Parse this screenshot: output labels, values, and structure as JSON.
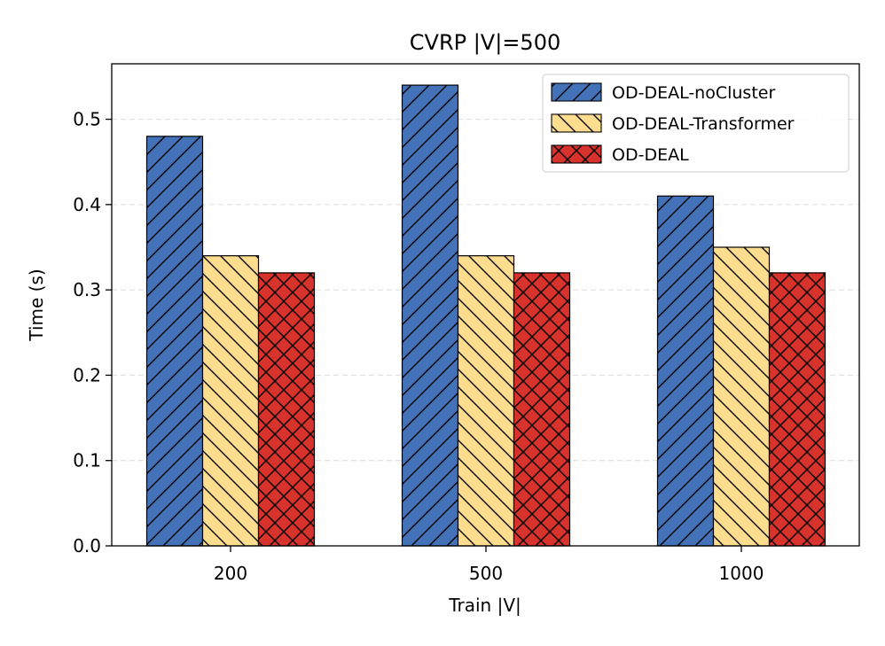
{
  "chart_data": {
    "type": "bar",
    "title": "CVRP |V|=500",
    "xlabel": "Train |V|",
    "ylabel": "Time (s)",
    "categories": [
      "200",
      "500",
      "1000"
    ],
    "ylim": [
      0,
      0.565
    ],
    "yticks": [
      0.0,
      0.1,
      0.2,
      0.3,
      0.4,
      0.5
    ],
    "ytick_labels": [
      "0.0",
      "0.1",
      "0.2",
      "0.3",
      "0.4",
      "0.5"
    ],
    "grid": "y-dashed",
    "legend_position": "top-right",
    "series": [
      {
        "name": "OD-DEAL-noCluster",
        "values": [
          0.48,
          0.54,
          0.41
        ],
        "color": "#4472b8",
        "hatch": "forward-diagonal"
      },
      {
        "name": "OD-DEAL-Transformer",
        "values": [
          0.34,
          0.34,
          0.35
        ],
        "color": "#fedd8f",
        "hatch": "back-diagonal"
      },
      {
        "name": "OD-DEAL",
        "values": [
          0.32,
          0.32,
          0.32
        ],
        "color": "#d7322b",
        "hatch": "cross"
      }
    ]
  }
}
